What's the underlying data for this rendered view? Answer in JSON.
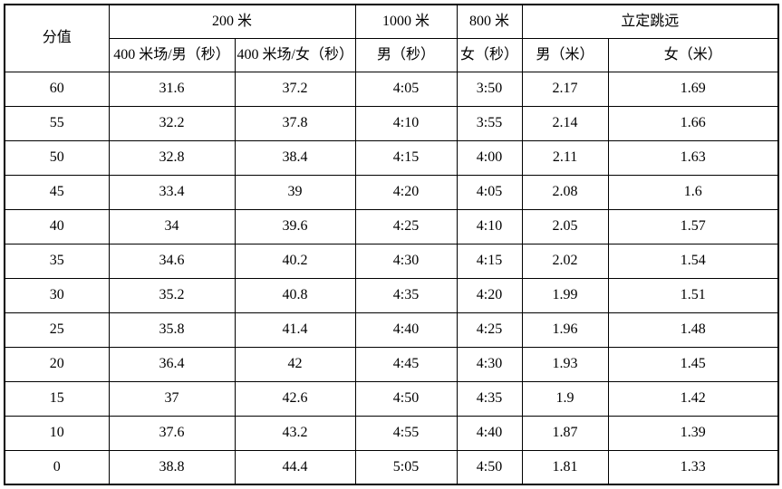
{
  "table": {
    "headers": {
      "score": "分值",
      "group_200m": "200 米",
      "col_400m_male": "400 米场/男（秒）",
      "col_400m_female": "400 米场/女（秒）",
      "group_1000m": "1000 米",
      "col_1000m_male": "男（秒）",
      "group_800m": "800 米",
      "col_800m_female": "女（秒）",
      "group_jump": "立定跳远",
      "col_jump_male": "男（米）",
      "col_jump_female": "女（米）"
    },
    "row_keys": [
      "score",
      "m400_male",
      "m400_female",
      "m1000_male",
      "m800_female",
      "jump_male",
      "jump_female"
    ],
    "rows": [
      {
        "score": "60",
        "m400_male": "31.6",
        "m400_female": "37.2",
        "m1000_male": "4:05",
        "m800_female": "3:50",
        "jump_male": "2.17",
        "jump_female": "1.69"
      },
      {
        "score": "55",
        "m400_male": "32.2",
        "m400_female": "37.8",
        "m1000_male": "4:10",
        "m800_female": "3:55",
        "jump_male": "2.14",
        "jump_female": "1.66"
      },
      {
        "score": "50",
        "m400_male": "32.8",
        "m400_female": "38.4",
        "m1000_male": "4:15",
        "m800_female": "4:00",
        "jump_male": "2.11",
        "jump_female": "1.63"
      },
      {
        "score": "45",
        "m400_male": "33.4",
        "m400_female": "39",
        "m1000_male": "4:20",
        "m800_female": "4:05",
        "jump_male": "2.08",
        "jump_female": "1.6"
      },
      {
        "score": "40",
        "m400_male": "34",
        "m400_female": "39.6",
        "m1000_male": "4:25",
        "m800_female": "4:10",
        "jump_male": "2.05",
        "jump_female": "1.57"
      },
      {
        "score": "35",
        "m400_male": "34.6",
        "m400_female": "40.2",
        "m1000_male": "4:30",
        "m800_female": "4:15",
        "jump_male": "2.02",
        "jump_female": "1.54"
      },
      {
        "score": "30",
        "m400_male": "35.2",
        "m400_female": "40.8",
        "m1000_male": "4:35",
        "m800_female": "4:20",
        "jump_male": "1.99",
        "jump_female": "1.51"
      },
      {
        "score": "25",
        "m400_male": "35.8",
        "m400_female": "41.4",
        "m1000_male": "4:40",
        "m800_female": "4:25",
        "jump_male": "1.96",
        "jump_female": "1.48"
      },
      {
        "score": "20",
        "m400_male": "36.4",
        "m400_female": "42",
        "m1000_male": "4:45",
        "m800_female": "4:30",
        "jump_male": "1.93",
        "jump_female": "1.45"
      },
      {
        "score": "15",
        "m400_male": "37",
        "m400_female": "42.6",
        "m1000_male": "4:50",
        "m800_female": "4:35",
        "jump_male": "1.9",
        "jump_female": "1.42"
      },
      {
        "score": "10",
        "m400_male": "37.6",
        "m400_female": "43.2",
        "m1000_male": "4:55",
        "m800_female": "4:40",
        "jump_male": "1.87",
        "jump_female": "1.39"
      },
      {
        "score": "0",
        "m400_male": "38.8",
        "m400_female": "44.4",
        "m1000_male": "5:05",
        "m800_female": "4:50",
        "jump_male": "1.81",
        "jump_female": "1.33"
      }
    ]
  },
  "colors": {
    "border": "#000000",
    "text": "#000000",
    "background": "#ffffff"
  }
}
